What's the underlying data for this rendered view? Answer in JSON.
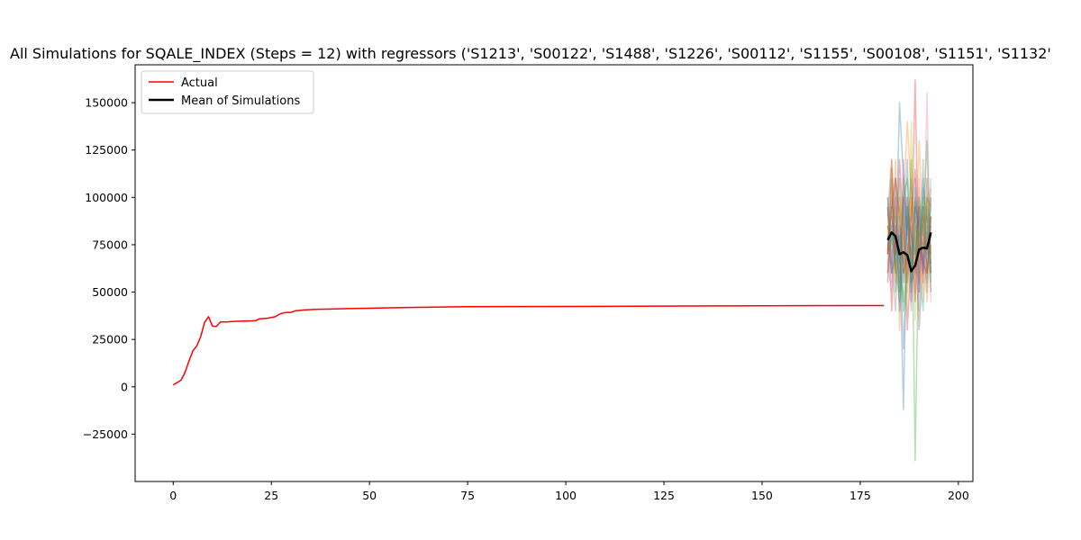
{
  "chart_data": {
    "type": "line",
    "title": "All Simulations for SQALE_INDEX (Steps = 12) with regressors ('S1213', 'S00122', 'S1488', 'S1226', 'S00112', 'S1155', 'S00108', 'S1151', 'S1132'",
    "xlabel": "",
    "ylabel": "",
    "xlim": [
      -9.7,
      203.7
    ],
    "ylim": [
      -50000,
      170000
    ],
    "x_ticks": [
      0,
      25,
      50,
      75,
      100,
      125,
      150,
      175,
      200
    ],
    "y_ticks": [
      -25000,
      0,
      25000,
      50000,
      75000,
      100000,
      125000,
      150000
    ],
    "grid": false,
    "legend": {
      "placement": "top-left",
      "entries": [
        "Actual",
        "Mean of Simulations"
      ]
    },
    "series": [
      {
        "name": "Actual",
        "color": "#ff0000",
        "points": [
          [
            0,
            1000
          ],
          [
            1,
            2200
          ],
          [
            2,
            3500
          ],
          [
            3,
            7500
          ],
          [
            4,
            13500
          ],
          [
            5,
            19000
          ],
          [
            6,
            21500
          ],
          [
            7,
            26500
          ],
          [
            8,
            34000
          ],
          [
            9,
            37000
          ],
          [
            10,
            32000
          ],
          [
            11,
            31800
          ],
          [
            12,
            34200
          ],
          [
            14,
            34300
          ],
          [
            16,
            34600
          ],
          [
            18,
            34700
          ],
          [
            20,
            34800
          ],
          [
            21,
            34900
          ],
          [
            22,
            35900
          ],
          [
            24,
            36200
          ],
          [
            25,
            36600
          ],
          [
            26,
            37000
          ],
          [
            27,
            38300
          ],
          [
            28,
            39000
          ],
          [
            29,
            39300
          ],
          [
            30,
            39300
          ],
          [
            31,
            40100
          ],
          [
            33,
            40500
          ],
          [
            36,
            40900
          ],
          [
            45,
            41300
          ],
          [
            60,
            41900
          ],
          [
            75,
            42300
          ],
          [
            100,
            42400
          ],
          [
            125,
            42600
          ],
          [
            150,
            42800
          ],
          [
            175,
            42900
          ],
          [
            181,
            42900
          ]
        ]
      },
      {
        "name": "Mean of Simulations",
        "color": "#000000",
        "points": [
          [
            182,
            77500
          ],
          [
            183,
            81500
          ],
          [
            184,
            79500
          ],
          [
            185,
            70000
          ],
          [
            186,
            71000
          ],
          [
            187,
            69500
          ],
          [
            188,
            61000
          ],
          [
            189,
            64000
          ],
          [
            190,
            72500
          ],
          [
            191,
            73500
          ],
          [
            192,
            73000
          ],
          [
            193,
            81500
          ]
        ]
      }
    ],
    "simulations": {
      "x_start": 182,
      "x_end": 193,
      "count": 24,
      "colors": [
        "#1f77b4",
        "#ff7f0e",
        "#2ca02c",
        "#d62728",
        "#9467bd",
        "#8c564b",
        "#e377c2",
        "#7f7f7f",
        "#bcbd22",
        "#17becf"
      ],
      "runs": [
        [
          72000,
          95000,
          60000,
          150000,
          110000,
          80000,
          70000,
          98000,
          55000,
          105000,
          90000,
          50000
        ],
        [
          85000,
          60000,
          120000,
          30000,
          95000,
          140000,
          100000,
          60000,
          82000,
          45000,
          100000,
          70000
        ],
        [
          70000,
          110000,
          50000,
          80000,
          40000,
          60000,
          120000,
          -39000,
          90000,
          70000,
          55000,
          100000
        ],
        [
          95000,
          40000,
          85000,
          65000,
          100000,
          30000,
          70000,
          162000,
          50000,
          95000,
          60000,
          85000
        ],
        [
          60000,
          80000,
          100000,
          50000,
          120000,
          70000,
          40000,
          110000,
          60000,
          90000,
          80000,
          60000
        ],
        [
          90000,
          120000,
          70000,
          100000,
          55000,
          90000,
          65000,
          80000,
          30000,
          70000,
          100000,
          95000
        ],
        [
          65000,
          50000,
          90000,
          60000,
          80000,
          100000,
          75000,
          50000,
          100000,
          60000,
          155000,
          45000
        ],
        [
          100000,
          70000,
          40000,
          90000,
          20000,
          70000,
          55000,
          95000,
          40000,
          120000,
          50000,
          90000
        ],
        [
          75000,
          95000,
          80000,
          60000,
          90000,
          40000,
          140000,
          35000,
          105000,
          70000,
          80000,
          65000
        ],
        [
          55000,
          85000,
          65000,
          110000,
          60000,
          85000,
          90000,
          70000,
          60000,
          40000,
          75000,
          110000
        ],
        [
          80000,
          60000,
          110000,
          40000,
          70000,
          120000,
          50000,
          95000,
          85000,
          65000,
          95000,
          55000
        ],
        [
          70000,
          105000,
          55000,
          95000,
          80000,
          65000,
          100000,
          60000,
          130000,
          80000,
          45000,
          80000
        ],
        [
          85000,
          75000,
          95000,
          70000,
          45000,
          95000,
          60000,
          85000,
          70000,
          100000,
          70000,
          90000
        ],
        [
          60000,
          90000,
          70000,
          120000,
          85000,
          55000,
          85000,
          45000,
          95000,
          55000,
          110000,
          60000
        ],
        [
          95000,
          65000,
          85000,
          50000,
          100000,
          80000,
          110000,
          75000,
          50000,
          85000,
          65000,
          100000
        ],
        [
          70000,
          115000,
          60000,
          85000,
          65000,
          100000,
          45000,
          100000,
          80000,
          75000,
          90000,
          70000
        ],
        [
          80000,
          55000,
          100000,
          75000,
          90000,
          60000,
          95000,
          55000,
          110000,
          60000,
          80000,
          85000
        ],
        [
          65000,
          100000,
          75000,
          55000,
          110000,
          85000,
          70000,
          90000,
          65000,
          95000,
          60000,
          75000
        ],
        [
          90000,
          70000,
          60000,
          100000,
          75000,
          50000,
          120000,
          65000,
          85000,
          70000,
          100000,
          50000
        ],
        [
          75000,
          85000,
          90000,
          65000,
          95000,
          75000,
          60000,
          105000,
          70000,
          110000,
          70000,
          95000
        ],
        [
          100000,
          60000,
          70000,
          80000,
          -12000,
          95000,
          80000,
          70000,
          95000,
          60000,
          85000,
          65000
        ],
        [
          55000,
          120000,
          85000,
          110000,
          70000,
          60000,
          100000,
          80000,
          55000,
          90000,
          75000,
          105000
        ],
        [
          85000,
          80000,
          65000,
          45000,
          100000,
          110000,
          55000,
          60000,
          100000,
          80000,
          130000,
          60000
        ],
        [
          70000,
          95000,
          110000,
          90000,
          60000,
          70000,
          90000,
          115000,
          75000,
          65000,
          60000,
          90000
        ]
      ]
    }
  }
}
